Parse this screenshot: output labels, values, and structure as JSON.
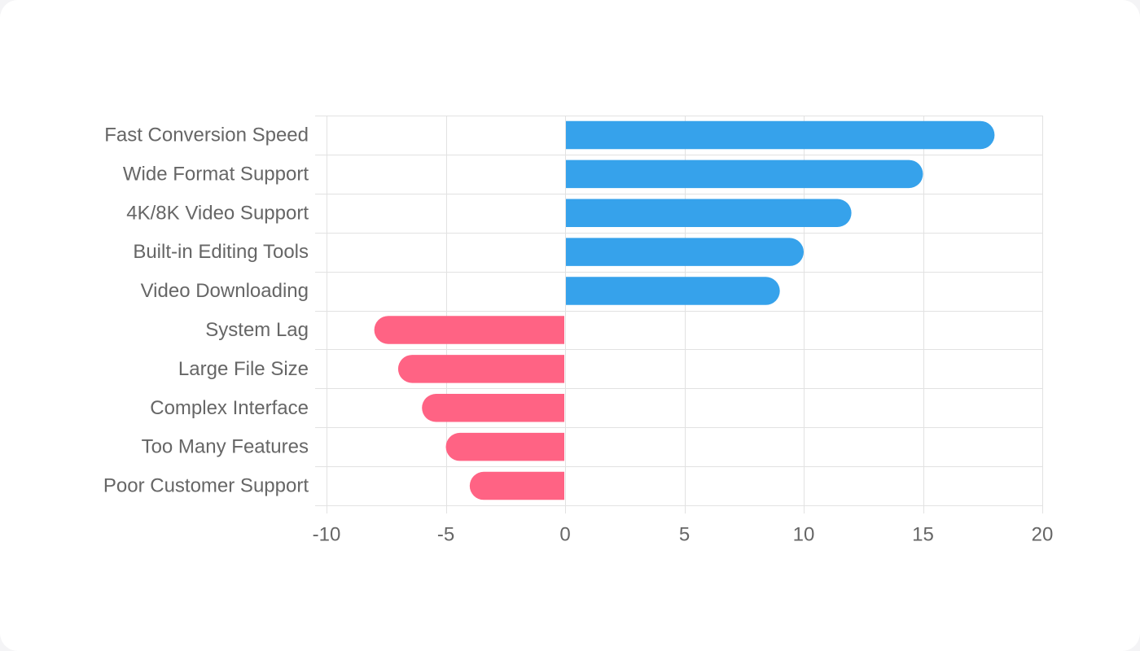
{
  "chart_data": {
    "type": "bar",
    "orientation": "horizontal",
    "categories": [
      "Fast Conversion Speed",
      "Wide Format Support",
      "4K/8K Video Support",
      "Built-in Editing Tools",
      "Video Downloading",
      "System Lag",
      "Large File Size",
      "Complex Interface",
      "Too Many Features",
      "Poor Customer Support"
    ],
    "values": [
      18,
      15,
      12,
      10,
      9,
      -8,
      -7,
      -6,
      -5,
      -4
    ],
    "xlim": [
      -10,
      20
    ],
    "xticks": [
      -10,
      -5,
      0,
      5,
      10,
      15,
      20
    ],
    "grid": true,
    "legend": "none",
    "colors": {
      "positive": "#36a2eb",
      "negative": "#ff6384"
    }
  }
}
